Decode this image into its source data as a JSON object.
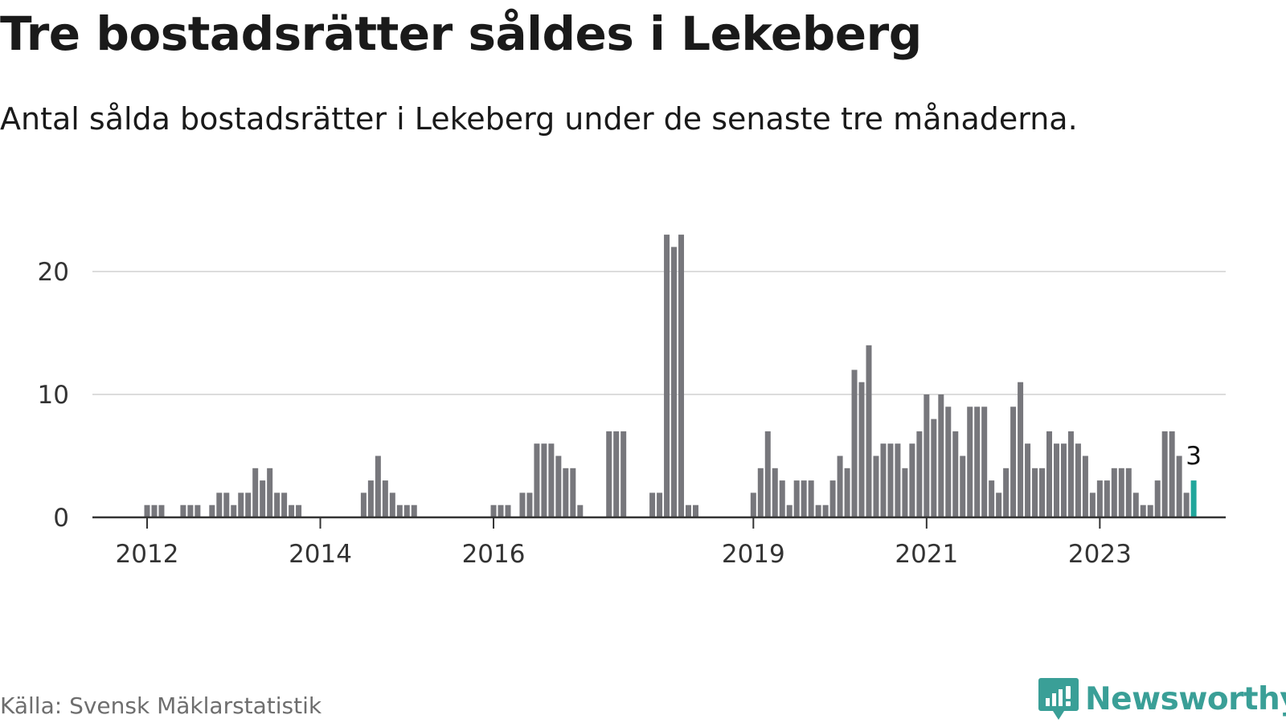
{
  "header": {
    "title": "Tre bostadsrätter såldes i Lekeberg",
    "subtitle": "Antal sålda bostadsrätter i Lekeberg under de senaste tre månaderna."
  },
  "footer": {
    "source": "Källa: Svensk Mäklarstatistik",
    "brand": "Newsworthy"
  },
  "colors": {
    "bar": "#77777c",
    "highlight": "#20a69b",
    "grid": "#dcdcdc",
    "axis": "#333333",
    "brand": "#3a9f97"
  },
  "chart_data": {
    "type": "bar",
    "title": "Tre bostadsrätter såldes i Lekeberg",
    "subtitle": "Antal sålda bostadsrätter i Lekeberg under de senaste tre månaderna.",
    "xlabel": "",
    "ylabel": "",
    "ylim": [
      0,
      23
    ],
    "yticks": [
      0,
      10,
      20
    ],
    "grid": true,
    "xticks": [
      "2012",
      "2014",
      "2016",
      "2019",
      "2021",
      "2023"
    ],
    "x_start": "2012-01",
    "highlight_last": true,
    "last_value_label": "3",
    "values": [
      1,
      1,
      1,
      0,
      0,
      1,
      1,
      1,
      0,
      1,
      2,
      2,
      1,
      2,
      2,
      4,
      3,
      4,
      2,
      2,
      1,
      1,
      0,
      0,
      0,
      0,
      0,
      0,
      0,
      0,
      2,
      3,
      5,
      3,
      2,
      1,
      1,
      1,
      0,
      0,
      0,
      0,
      0,
      0,
      0,
      0,
      0,
      0,
      1,
      1,
      1,
      0,
      2,
      2,
      6,
      6,
      6,
      5,
      4,
      4,
      1,
      0,
      0,
      0,
      7,
      7,
      7,
      0,
      0,
      0,
      2,
      2,
      23,
      22,
      23,
      1,
      1,
      0,
      0,
      0,
      0,
      0,
      0,
      0,
      2,
      4,
      7,
      4,
      3,
      1,
      3,
      3,
      3,
      1,
      1,
      3,
      5,
      4,
      12,
      11,
      14,
      5,
      6,
      6,
      6,
      4,
      6,
      7,
      10,
      8,
      10,
      9,
      7,
      5,
      9,
      9,
      9,
      3,
      2,
      4,
      9,
      11,
      6,
      4,
      4,
      7,
      6,
      6,
      7,
      6,
      5,
      2,
      3,
      3,
      4,
      4,
      4,
      2,
      1,
      1,
      3,
      7,
      7,
      5,
      2,
      3
    ]
  }
}
